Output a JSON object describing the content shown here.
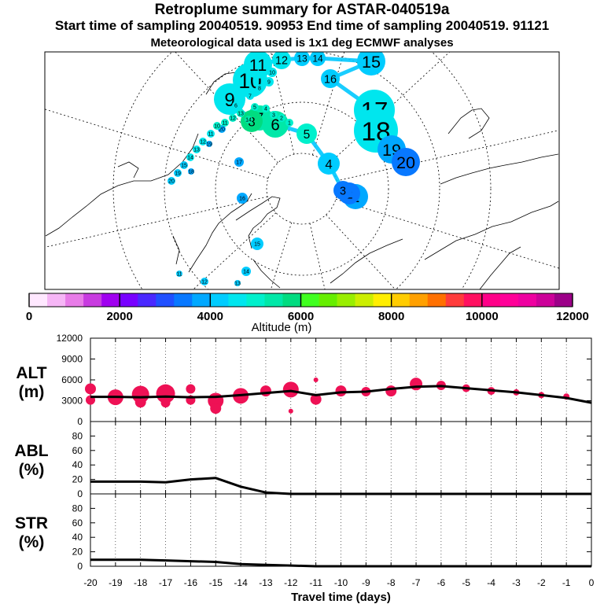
{
  "header": {
    "title": "Retroplume summary for ASTAR-040519a",
    "line2": "Start time of sampling 20040519. 90953     End time of sampling 20040519. 91121",
    "line3": "Meteorological data used is 1x1 deg ECMWF analyses"
  },
  "colors": {
    "alt_points": "#ee1155",
    "line": "#000000",
    "frame": "#000000"
  },
  "chart_data": [
    {
      "type": "scatter",
      "title": "Retroplume positions (polar map)",
      "points": [
        {
          "label": "1",
          "altitude_m": 3600
        },
        {
          "label": "2",
          "altitude_m": 3400
        },
        {
          "label": "3",
          "altitude_m": 3300
        },
        {
          "label": "4",
          "altitude_m": 4200
        },
        {
          "label": "5",
          "altitude_m": 4900
        },
        {
          "label": "6",
          "altitude_m": 5300
        },
        {
          "label": "7",
          "altitude_m": 5500
        },
        {
          "label": "8",
          "altitude_m": 5700
        },
        {
          "label": "9",
          "altitude_m": 4600
        },
        {
          "label": "10",
          "altitude_m": 4500
        },
        {
          "label": "11",
          "altitude_m": 4500
        },
        {
          "label": "12",
          "altitude_m": 4400
        },
        {
          "label": "13",
          "altitude_m": 4300
        },
        {
          "label": "14",
          "altitude_m": 4200
        },
        {
          "label": "15",
          "altitude_m": 4300
        },
        {
          "label": "16",
          "altitude_m": 4300
        },
        {
          "label": "17",
          "altitude_m": 4500
        },
        {
          "label": "18",
          "altitude_m": 4400
        },
        {
          "label": "19",
          "altitude_m": 3600
        },
        {
          "label": "20",
          "altitude_m": 3500
        }
      ],
      "colorbar": {
        "label": "Altitude (m)",
        "tick_labels": [
          "0",
          "2000",
          "4000",
          "6000",
          "8000",
          "10000",
          "12000"
        ],
        "range": [
          0,
          12000
        ]
      },
      "extra_labels": [
        "20",
        "19",
        "18",
        "17",
        "16",
        "15",
        "14",
        "13",
        "12",
        "11",
        "10",
        "9",
        "8",
        "7",
        "6",
        "5",
        "4",
        "3",
        "2",
        "1",
        "14",
        "13",
        "12",
        "11",
        "10",
        "11",
        "12",
        "13",
        "14",
        "15",
        "19",
        "20"
      ]
    },
    {
      "type": "line",
      "ylabel": "ALT\n(m)",
      "ylabel_lines": [
        "ALT",
        "(m)"
      ],
      "ylim": [
        0,
        12000
      ],
      "yticks": [
        "0",
        "3000",
        "6000",
        "9000",
        "12000"
      ],
      "x": [
        -20,
        -19,
        -18,
        -17,
        -16,
        -15,
        -14,
        -13,
        -12,
        -11,
        -10,
        -9,
        -8,
        -7,
        -6,
        -5,
        -4,
        -3,
        -2,
        -1,
        0
      ],
      "series": [
        {
          "name": "mean altitude",
          "values": [
            3550,
            3550,
            3500,
            3600,
            3500,
            3550,
            3800,
            4100,
            4400,
            3800,
            4200,
            4300,
            4700,
            5000,
            5100,
            4800,
            4500,
            4200,
            3800,
            3400,
            2700
          ]
        }
      ],
      "scatter": {
        "x": [
          -20,
          -20,
          -19,
          -18,
          -18,
          -17,
          -17,
          -16,
          -16,
          -15,
          -15,
          -14,
          -13,
          -12,
          -12,
          -11,
          -11,
          -10,
          -9,
          -8,
          -7,
          -6,
          -5,
          -4,
          -3,
          -2,
          -1
        ],
        "y": [
          4700,
          3100,
          3500,
          3900,
          2800,
          4000,
          2700,
          4700,
          3100,
          3000,
          1900,
          3700,
          4400,
          4600,
          1500,
          3200,
          6000,
          4400,
          4300,
          4400,
          5400,
          5200,
          4800,
          4400,
          4200,
          3800,
          3600
        ],
        "size": [
          7,
          6,
          10,
          11,
          7,
          12,
          6,
          6,
          6,
          10,
          7,
          10,
          7,
          10,
          3,
          7,
          3,
          7,
          6,
          7,
          8,
          6,
          5,
          5,
          4,
          4,
          4
        ]
      }
    },
    {
      "type": "line",
      "ylabel": "ABL\n(%)",
      "ylabel_lines": [
        "ABL",
        "(%)"
      ],
      "ylim": [
        0,
        100
      ],
      "yticks": [
        "0",
        "20",
        "40",
        "60",
        "80"
      ],
      "x": [
        -20,
        -19,
        -18,
        -17,
        -16,
        -15,
        -14,
        -13,
        -12,
        -11,
        -10,
        -9,
        -8,
        -7,
        -6,
        -5,
        -4,
        -3,
        -2,
        -1,
        0
      ],
      "series": [
        {
          "name": "ABL fraction",
          "values": [
            17,
            17,
            17,
            16,
            20,
            22,
            10,
            2,
            0,
            0,
            0,
            0,
            0,
            0,
            0,
            0,
            0,
            0,
            0,
            0,
            0
          ]
        }
      ]
    },
    {
      "type": "line",
      "ylabel": "STR\n(%)",
      "ylabel_lines": [
        "STR",
        "(%)"
      ],
      "ylim": [
        0,
        100
      ],
      "yticks": [
        "0",
        "20",
        "40",
        "60",
        "80"
      ],
      "x": [
        -20,
        -19,
        -18,
        -17,
        -16,
        -15,
        -14,
        -13,
        -12,
        -11,
        -10,
        -9,
        -8,
        -7,
        -6,
        -5,
        -4,
        -3,
        -2,
        -1,
        0
      ],
      "series": [
        {
          "name": "STR fraction",
          "values": [
            9,
            9,
            9,
            8,
            7,
            6,
            3,
            2,
            1,
            0,
            0,
            0,
            0,
            0,
            0,
            0,
            0,
            0,
            0,
            0,
            0
          ]
        }
      ],
      "xlabel": "Travel time (days)",
      "xtick_labels": [
        "-20",
        "-19",
        "-18",
        "-17",
        "-16",
        "-15",
        "-14",
        "-13",
        "-12",
        "-11",
        "-10",
        "-9",
        "-8",
        "-7",
        "-6",
        "-5",
        "-4",
        "-3",
        "-2",
        "-1",
        "0"
      ]
    }
  ]
}
